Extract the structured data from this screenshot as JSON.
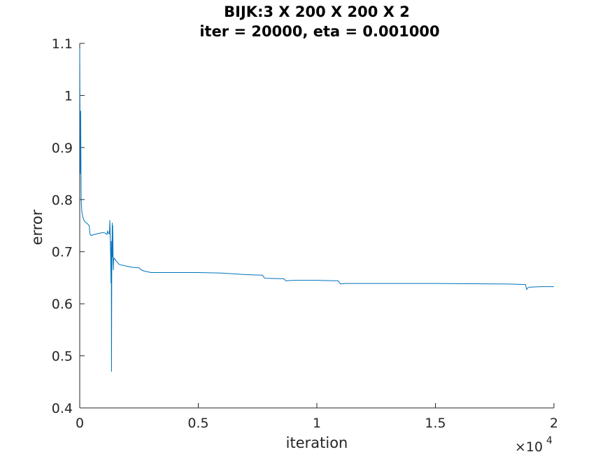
{
  "chart_data": {
    "type": "line",
    "title": [
      "BIJK:3 X 200 X 200 X 2",
      "iter = 20000, eta = 0.001000"
    ],
    "xlabel": "iteration",
    "ylabel": "error",
    "x_exponent_label": {
      "base": "×10",
      "exponent": "4"
    },
    "xlim": [
      0,
      20000
    ],
    "ylim": [
      0.4,
      1.1
    ],
    "x_ticks": [
      0,
      5000,
      10000,
      15000,
      20000
    ],
    "x_tick_labels": [
      "0",
      "0.5",
      "1",
      "1.5",
      "2"
    ],
    "y_ticks": [
      0.4,
      0.5,
      0.6,
      0.7,
      0.8,
      0.9,
      1.0,
      1.1
    ],
    "y_tick_labels": [
      "0.4",
      "0.5",
      "0.6",
      "0.7",
      "0.8",
      "0.9",
      "1",
      "1.1"
    ],
    "grid": false,
    "box": "left-bottom",
    "line_color": "#0072BD",
    "series": [
      {
        "x": [
          0,
          20,
          40,
          60,
          90,
          130,
          180,
          250,
          300,
          400,
          430,
          480,
          600,
          700,
          900,
          1000,
          1100,
          1150,
          1180,
          1200,
          1250,
          1270,
          1290,
          1300,
          1320,
          1330,
          1340,
          1350,
          1360,
          1370,
          1380,
          1390,
          1400,
          1410,
          1420,
          1430,
          1450,
          1500,
          1600,
          1650,
          1700,
          2000,
          2200,
          2500,
          2600,
          2700,
          3000,
          5000,
          6000,
          7000,
          7700,
          7800,
          8600,
          8700,
          9000,
          10000,
          10900,
          11000,
          11200,
          15000,
          18000,
          18800,
          18850,
          18900,
          19000,
          19500,
          20000
        ],
        "y": [
          1.09,
          0.85,
          0.97,
          0.8,
          0.776,
          0.767,
          0.76,
          0.756,
          0.755,
          0.75,
          0.734,
          0.731,
          0.733,
          0.734,
          0.736,
          0.737,
          0.735,
          0.733,
          0.74,
          0.736,
          0.734,
          0.76,
          0.72,
          0.7,
          0.64,
          0.72,
          0.47,
          0.65,
          0.7,
          0.755,
          0.69,
          0.75,
          0.72,
          0.68,
          0.665,
          0.685,
          0.688,
          0.684,
          0.679,
          0.676,
          0.675,
          0.672,
          0.67,
          0.669,
          0.665,
          0.663,
          0.66,
          0.66,
          0.659,
          0.656,
          0.655,
          0.649,
          0.648,
          0.644,
          0.645,
          0.645,
          0.644,
          0.638,
          0.639,
          0.639,
          0.638,
          0.637,
          0.627,
          0.631,
          0.632,
          0.633,
          0.633
        ]
      }
    ]
  }
}
